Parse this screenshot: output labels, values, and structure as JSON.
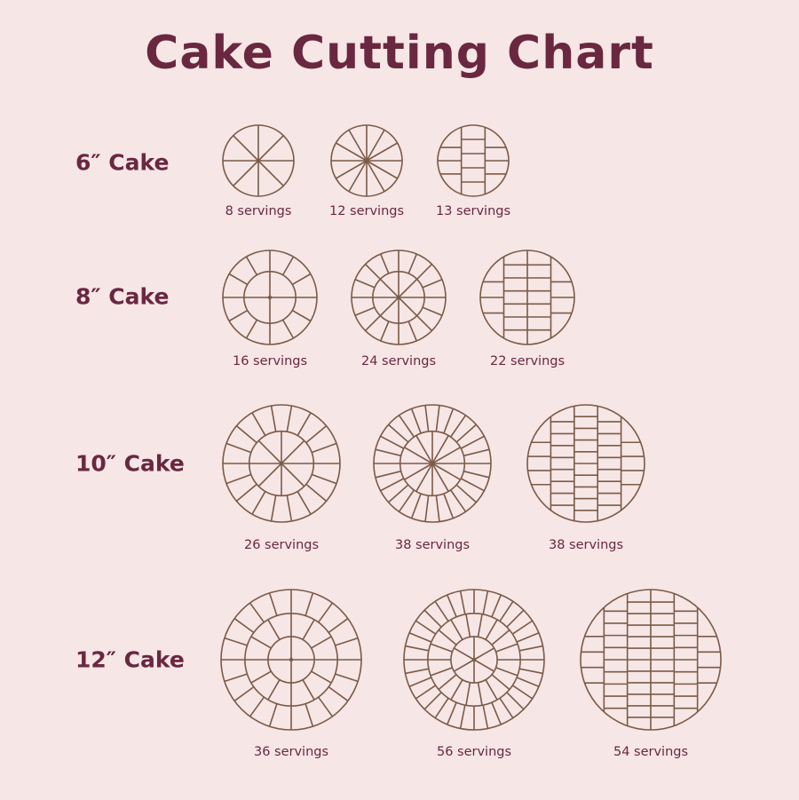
{
  "title": "Cake Cutting Chart",
  "colors": {
    "background": "#f6e6e6",
    "text": "#6a2740",
    "line": "#7b5a47"
  },
  "rows": [
    {
      "label": "6″ Cake",
      "cakes": [
        {
          "servings": "8 servings",
          "pattern": {
            "type": "radial",
            "rings": [
              8
            ]
          }
        },
        {
          "servings": "12 servings",
          "pattern": {
            "type": "radial",
            "rings": [
              12
            ]
          }
        },
        {
          "servings": "13 servings",
          "pattern": {
            "type": "grid",
            "columns": [
              4,
              5,
              4
            ]
          }
        }
      ]
    },
    {
      "label": "8″ Cake",
      "cakes": [
        {
          "servings": "16 servings",
          "pattern": {
            "type": "radial",
            "rings": [
              4,
              12
            ]
          }
        },
        {
          "servings": "24 servings",
          "pattern": {
            "type": "radial",
            "rings": [
              8,
              16
            ]
          }
        },
        {
          "servings": "22 servings",
          "pattern": {
            "type": "grid",
            "columns": [
              4,
              7,
              7,
              4
            ]
          }
        }
      ]
    },
    {
      "label": "10″ Cake",
      "cakes": [
        {
          "servings": "26 servings",
          "pattern": {
            "type": "radial",
            "rings": [
              8,
              18
            ]
          }
        },
        {
          "servings": "38 servings",
          "pattern": {
            "type": "radial",
            "rings": [
              12,
              26
            ]
          }
        },
        {
          "servings": "38 servings",
          "pattern": {
            "type": "grid",
            "columns": [
              5,
              9,
              10,
              9,
              5
            ]
          }
        }
      ]
    },
    {
      "label": "12″ Cake",
      "cakes": [
        {
          "servings": "36 servings",
          "pattern": {
            "type": "radial",
            "rings": [
              4,
              12,
              20
            ]
          }
        },
        {
          "servings": "56 servings",
          "pattern": {
            "type": "radial",
            "rings": [
              6,
              18,
              32
            ]
          }
        },
        {
          "servings": "54 servings",
          "pattern": {
            "type": "grid",
            "columns": [
              5,
              10,
              12,
              12,
              10,
              5
            ]
          }
        }
      ]
    }
  ]
}
